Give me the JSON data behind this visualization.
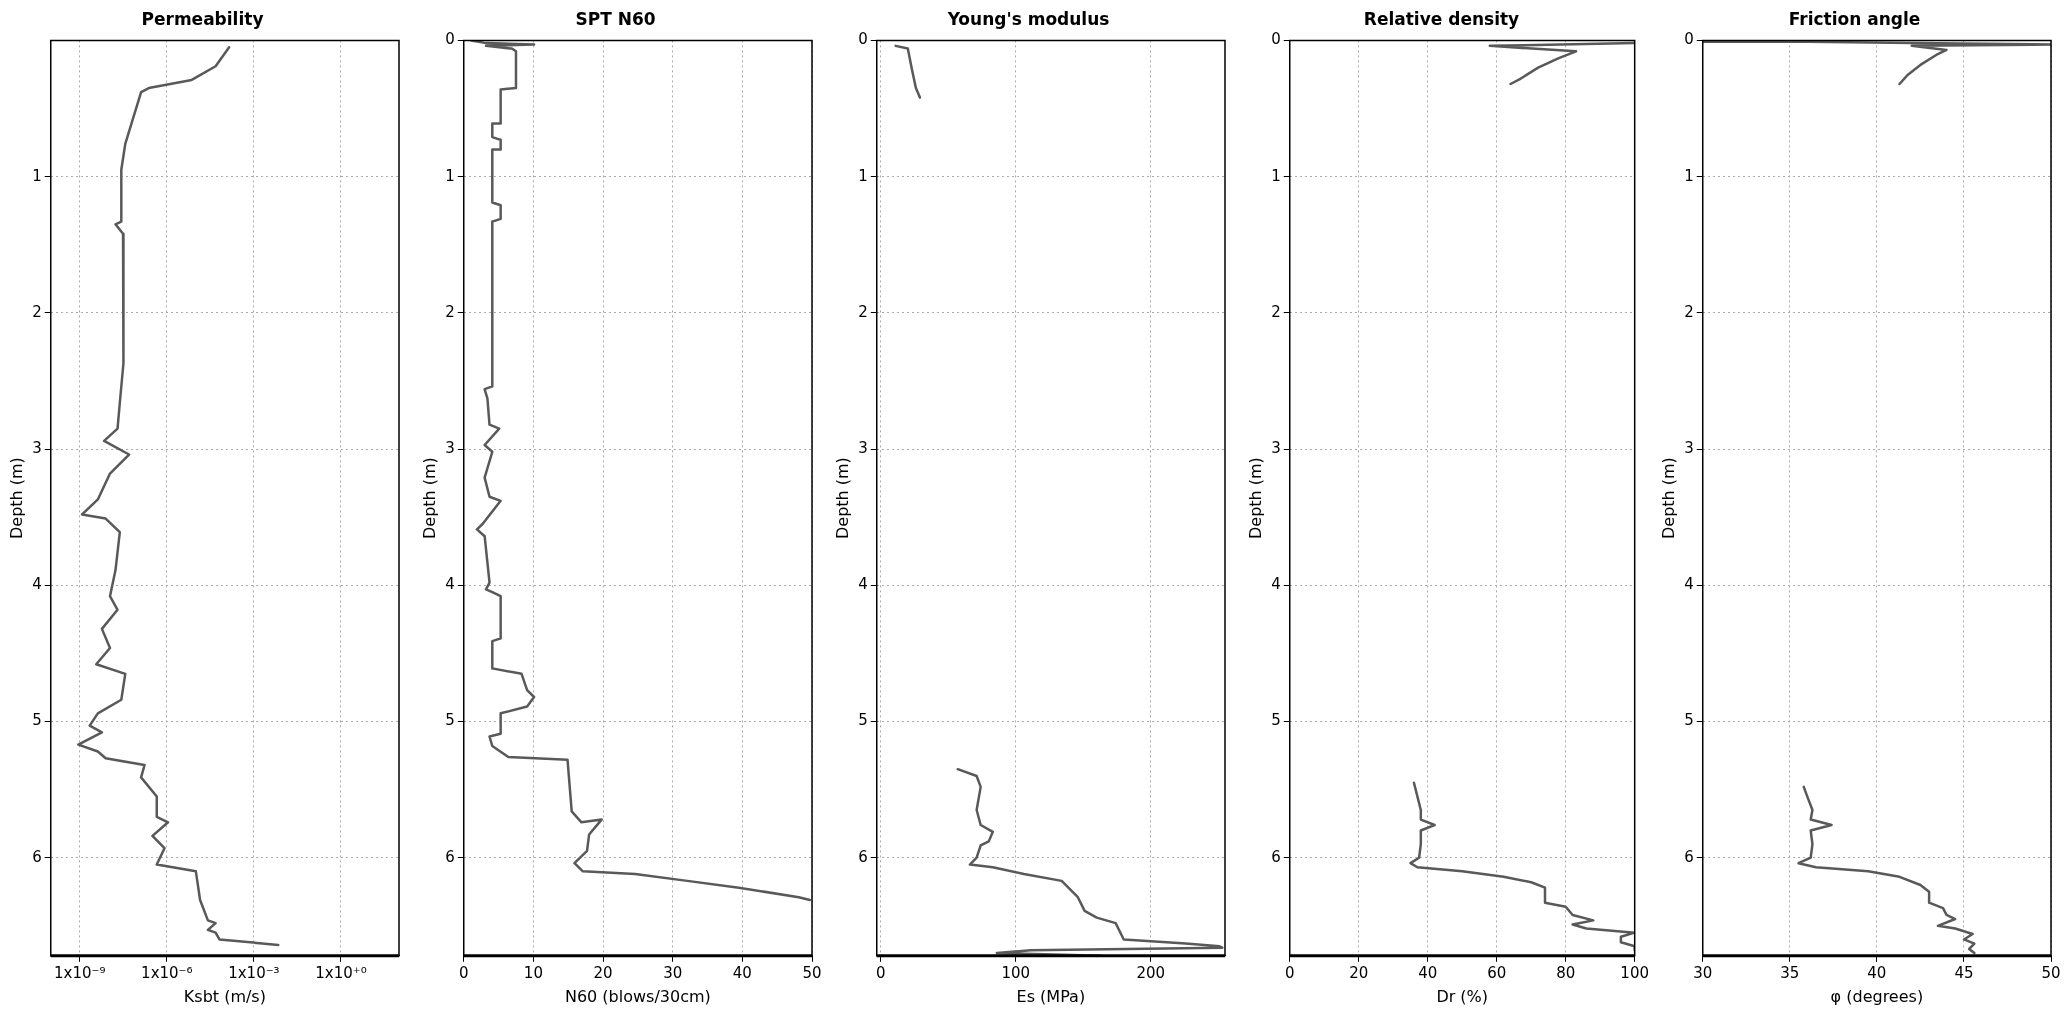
{
  "chart_data": [
    {
      "type": "line",
      "title": "Permeability",
      "xlabel": "Ksbt (m/s)",
      "ylabel": "Depth (m)",
      "log": "x",
      "grid": true,
      "marker": "none",
      "xlim": [
        1e-10,
        100
      ],
      "xticks": [
        {
          "value": 1e-09,
          "label": "1x10⁻⁹"
        },
        {
          "value": 1e-06,
          "label": "1x10⁻⁶"
        },
        {
          "value": 0.001,
          "label": "1x10⁻³"
        },
        {
          "value": 1,
          "label": "1x10⁺⁰"
        }
      ],
      "ylim": [
        6.72,
        0
      ],
      "yticks": [
        1,
        2,
        3,
        4,
        5,
        6
      ],
      "series": [
        {
          "color": "#595959",
          "x": [
            0.00014,
            4.8e-05,
            7.2e-06,
            2.4e-07,
            1.3e-07,
            6.9e-08,
            3.7e-08,
            2.7e-08,
            2.7e-08,
            1.7e-08,
            3.1e-08,
            3.2e-08,
            2.4e-08,
            2e-08,
            6.9e-09,
            5e-08,
            1.1e-08,
            4.2e-09,
            1.2e-09,
            7.8e-09,
            2.4e-08,
            1.7e-08,
            1.1e-08,
            2e-08,
            5.8e-09,
            1.1e-08,
            3.7e-09,
            3.7e-08,
            2.7e-08,
            4.2e-09,
            2.2e-09,
            5.8e-09,
            8.9e-10,
            4.2e-09,
            7.8e-09,
            1.7e-07,
            1.3e-07,
            4.5e-07,
            4.5e-07,
            1.1e-06,
            3.2e-07,
            8.3e-07,
            4.5e-07,
            1e-05,
            1.4e-05,
            2.6e-05,
            4.8e-05,
            2.6e-05,
            4.8e-05,
            6.5e-05,
            0.0069
          ],
          "values": [
            0.05,
            0.19,
            0.29,
            0.35,
            0.38,
            0.57,
            0.76,
            0.95,
            1.33,
            1.35,
            1.42,
            2.37,
            2.66,
            2.85,
            2.94,
            3.04,
            3.18,
            3.37,
            3.48,
            3.51,
            3.61,
            3.89,
            4.08,
            4.18,
            4.32,
            4.46,
            4.58,
            4.65,
            4.84,
            4.94,
            5.03,
            5.08,
            5.17,
            5.22,
            5.27,
            5.32,
            5.41,
            5.55,
            5.7,
            5.74,
            5.84,
            5.93,
            6.05,
            6.1,
            6.31,
            6.46,
            6.48,
            6.53,
            6.55,
            6.6,
            6.64
          ]
        }
      ]
    },
    {
      "type": "line",
      "title": "SPT N60",
      "xlabel": "N60 (blows/30cm)",
      "ylabel": "Depth (m)",
      "grid": true,
      "marker": "none",
      "xlim": [
        0,
        50
      ],
      "xticks": [
        0,
        10,
        20,
        30,
        40,
        50
      ],
      "ylim": [
        6.72,
        0
      ],
      "yticks": [
        0,
        1,
        2,
        3,
        4,
        5,
        6
      ],
      "series": [
        {
          "color": "#595959",
          "x": [
            1.1,
            3.2,
            10.1,
            3.2,
            6.9,
            7.5,
            7.5,
            5.3,
            5.3,
            4.1,
            4.1,
            5.3,
            5.3,
            4.1,
            4.1,
            5.3,
            5.3,
            4.1,
            4.1,
            3.0,
            3.4,
            3.7,
            5.1,
            3.0,
            4.1,
            3.0,
            3.7,
            5.3,
            2.7,
            1.9,
            3.0,
            3.7,
            3.2,
            4.1,
            5.3,
            5.3,
            4.1,
            4.1,
            8.3,
            9.1,
            10.1,
            9.1,
            5.3,
            5.3,
            3.7,
            4.1,
            6.4,
            14.9,
            15.5,
            16.9,
            19.8,
            18.0,
            17.7,
            15.9,
            17.1,
            24.6,
            32.1,
            39.5,
            48.1,
            49.7
          ],
          "values": [
            0,
            0.02,
            0.03,
            0.04,
            0.06,
            0.08,
            0.35,
            0.36,
            0.61,
            0.61,
            0.71,
            0.73,
            0.8,
            0.8,
            1.19,
            1.21,
            1.31,
            1.33,
            2.54,
            2.56,
            2.63,
            2.82,
            2.85,
            2.97,
            3.02,
            3.21,
            3.35,
            3.38,
            3.55,
            3.59,
            3.64,
            3.98,
            4.03,
            4.05,
            4.08,
            4.39,
            4.41,
            4.61,
            4.65,
            4.77,
            4.82,
            4.89,
            4.94,
            5.09,
            5.11,
            5.18,
            5.26,
            5.28,
            5.66,
            5.74,
            5.72,
            5.83,
            5.95,
            6.04,
            6.1,
            6.12,
            6.17,
            6.22,
            6.29,
            6.31
          ]
        }
      ]
    },
    {
      "type": "line",
      "title": "Young's modulus",
      "xlabel": "Es (MPa)",
      "ylabel": "Depth (m)",
      "grid": true,
      "marker": "none",
      "xlim": [
        -3,
        255
      ],
      "xticks": [
        0,
        100,
        200
      ],
      "ylim": [
        6.72,
        0
      ],
      "yticks": [
        0,
        1,
        2,
        3,
        4,
        5,
        6
      ],
      "series": [
        {
          "color": "#595959",
          "x": [
            11,
            20,
            23,
            26,
            29
          ],
          "values": [
            0.04,
            0.06,
            0.21,
            0.35,
            0.42
          ]
        },
        {
          "color": "#595959",
          "x": [
            57,
            71,
            74,
            71,
            74,
            83,
            80,
            74,
            71,
            66,
            83,
            106,
            134,
            146,
            151,
            160,
            174,
            180,
            226,
            251,
            253,
            111,
            86,
            163
          ],
          "values": [
            5.35,
            5.4,
            5.48,
            5.65,
            5.76,
            5.81,
            5.88,
            5.91,
            6.0,
            6.05,
            6.07,
            6.12,
            6.17,
            6.29,
            6.39,
            6.44,
            6.48,
            6.6,
            6.63,
            6.65,
            6.66,
            6.68,
            6.7,
            6.72
          ]
        }
      ]
    },
    {
      "type": "line",
      "title": "Relative density",
      "xlabel": "Dr (%)",
      "ylabel": "Depth (m)",
      "grid": true,
      "marker": "none",
      "xlim": [
        0,
        100
      ],
      "xticks": [
        0,
        20,
        40,
        60,
        80,
        100
      ],
      "ylim": [
        6.72,
        0
      ],
      "yticks": [
        0,
        1,
        2,
        3,
        4,
        5,
        6
      ],
      "series": [
        {
          "color": "#595959",
          "x": [
            100,
            58,
            83,
            78,
            72,
            67,
            64
          ],
          "values": [
            0.02,
            0.04,
            0.08,
            0.13,
            0.2,
            0.28,
            0.32
          ]
        },
        {
          "color": "#595959",
          "x": [
            36,
            37,
            38,
            38,
            42,
            38,
            38,
            37.5,
            35,
            37,
            50,
            62,
            70,
            74,
            74,
            80,
            82,
            88,
            82,
            86,
            100,
            96,
            96,
            100,
            100
          ],
          "values": [
            5.45,
            5.55,
            5.65,
            5.72,
            5.76,
            5.8,
            5.9,
            6.0,
            6.04,
            6.07,
            6.1,
            6.14,
            6.18,
            6.22,
            6.33,
            6.36,
            6.42,
            6.46,
            6.49,
            6.52,
            6.55,
            6.58,
            6.62,
            6.65,
            6.68
          ]
        }
      ]
    },
    {
      "type": "line",
      "title": "Friction angle",
      "xlabel": "φ (degrees)",
      "ylabel": "Depth (m)",
      "grid": true,
      "marker": "none",
      "xlim": [
        30,
        50
      ],
      "xticks": [
        30,
        35,
        40,
        45,
        50
      ],
      "ylim": [
        6.72,
        0
      ],
      "yticks": [
        0,
        1,
        2,
        3,
        4,
        5,
        6
      ],
      "series": [
        {
          "color": "#595959",
          "x": [
            30,
            36,
            42,
            50,
            42,
            44,
            43.5,
            42.5,
            41.8,
            41.3
          ],
          "values": [
            0.01,
            0.01,
            0.02,
            0.03,
            0.04,
            0.07,
            0.1,
            0.18,
            0.25,
            0.32
          ]
        },
        {
          "color": "#595959",
          "x": [
            35.8,
            36,
            36.3,
            36.2,
            37.4,
            36.2,
            36.3,
            36.2,
            35.5,
            36.5,
            39.5,
            41.3,
            42.5,
            43,
            43,
            43.8,
            44,
            44.5,
            43.5,
            44.5,
            45.5,
            45,
            45.6,
            45.3,
            45.6
          ],
          "values": [
            5.48,
            5.55,
            5.65,
            5.72,
            5.76,
            5.8,
            5.9,
            6.0,
            6.04,
            6.07,
            6.1,
            6.14,
            6.2,
            6.25,
            6.33,
            6.37,
            6.42,
            6.45,
            6.5,
            6.52,
            6.56,
            6.6,
            6.63,
            6.67,
            6.7
          ]
        }
      ]
    }
  ]
}
